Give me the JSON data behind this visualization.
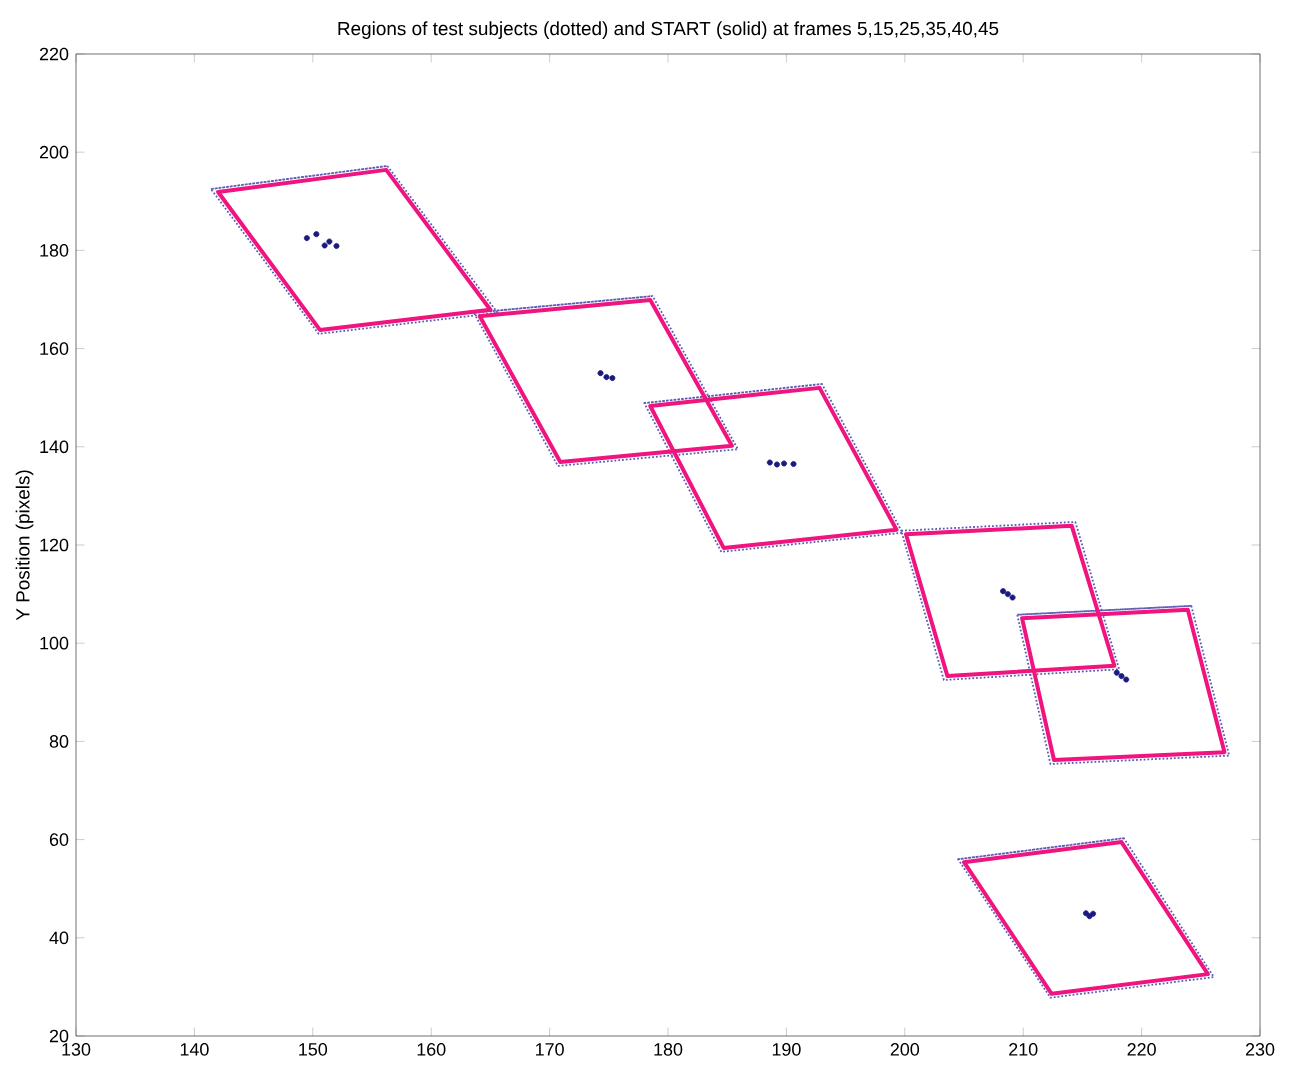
{
  "chart_data": {
    "type": "line",
    "title": "Regions of test subjects (dotted) and START (solid) at frames 5,15,25,35,40,45",
    "ylabel": "Y Position (pixels)",
    "xlim": [
      130,
      230
    ],
    "xticks": [
      130,
      140,
      150,
      160,
      170,
      180,
      190,
      200,
      210,
      220,
      230
    ],
    "ylim": [
      20,
      220
    ],
    "yticks": [
      20,
      40,
      60,
      80,
      100,
      120,
      140,
      160,
      180,
      200,
      220
    ],
    "series": [
      {
        "line_style": "dotted",
        "color": "#5a5ab4",
        "x": [
          141.4,
          156.3,
          165.6,
          150.5,
          141.4,
          156.3
        ],
        "values": [
          192.5,
          197.2,
          167.3,
          163.0,
          192.5,
          197.2
        ]
      },
      {
        "line_style": "dotted",
        "color": "#5a5ab4",
        "x": [
          163.6,
          178.7,
          185.9,
          170.7,
          163.6,
          178.7
        ],
        "values": [
          167.3,
          170.7,
          139.5,
          136.1,
          167.3,
          170.7
        ]
      },
      {
        "line_style": "dotted",
        "color": "#5a5ab4",
        "x": [
          178.0,
          193.0,
          199.8,
          184.5,
          178.0,
          193.0
        ],
        "values": [
          148.9,
          152.8,
          122.5,
          118.6,
          148.9,
          152.8
        ]
      },
      {
        "line_style": "dotted",
        "color": "#5a5ab4",
        "x": [
          199.7,
          214.4,
          218.1,
          203.3,
          199.7,
          214.4
        ],
        "values": [
          122.9,
          124.7,
          94.7,
          92.5,
          122.9,
          124.7
        ]
      },
      {
        "line_style": "dotted",
        "color": "#5a5ab4",
        "x": [
          209.5,
          224.2,
          227.4,
          212.3,
          209.5,
          224.2
        ],
        "values": [
          105.8,
          107.6,
          77.1,
          75.4,
          105.8,
          107.6
        ]
      },
      {
        "line_style": "dotted",
        "color": "#5a5ab4",
        "x": [
          204.5,
          218.5,
          226.1,
          212.3,
          204.5,
          218.5
        ],
        "values": [
          56.0,
          60.3,
          32.0,
          27.8,
          56.0,
          60.3
        ]
      },
      {
        "line_style": "solid",
        "color": "#f0147f",
        "x": [
          142.0,
          156.2,
          165.0,
          150.6,
          142.0,
          156.2
        ],
        "values": [
          191.9,
          196.4,
          167.9,
          163.8,
          191.9,
          196.4
        ]
      },
      {
        "line_style": "solid",
        "color": "#f0147f",
        "x": [
          164.1,
          178.5,
          185.4,
          170.9,
          164.1,
          178.5
        ],
        "values": [
          166.6,
          169.9,
          140.2,
          136.9,
          166.6,
          169.9
        ]
      },
      {
        "line_style": "solid",
        "color": "#f0147f",
        "x": [
          178.5,
          192.8,
          199.3,
          184.7,
          178.5,
          192.8
        ],
        "values": [
          148.3,
          152.0,
          123.1,
          119.4,
          148.3,
          152.0
        ]
      },
      {
        "line_style": "solid",
        "color": "#f0147f",
        "x": [
          200.1,
          214.1,
          217.7,
          203.6,
          200.1,
          214.1
        ],
        "values": [
          122.2,
          123.9,
          95.4,
          93.3,
          122.2,
          123.9
        ]
      },
      {
        "line_style": "solid",
        "color": "#f0147f",
        "x": [
          209.9,
          223.9,
          227.0,
          212.6,
          209.9,
          223.9
        ],
        "values": [
          105.1,
          106.8,
          77.8,
          76.2,
          105.1,
          106.8
        ]
      },
      {
        "line_style": "solid",
        "color": "#f0147f",
        "x": [
          205.0,
          218.3,
          225.6,
          212.4,
          205.0,
          218.3
        ],
        "values": [
          55.4,
          59.5,
          32.6,
          28.6,
          55.4,
          59.5
        ]
      },
      {
        "type": "scatter",
        "color": "#1a1a80",
        "x": [
          149.5,
          150.3,
          151.0,
          151.4,
          152.0,
          174.3,
          174.8,
          175.3,
          188.6,
          189.2,
          189.8,
          190.6,
          208.3,
          208.7,
          209.1,
          217.9,
          218.3,
          218.7,
          215.3,
          215.6,
          215.9
        ],
        "values": [
          182.5,
          183.3,
          181.0,
          181.8,
          180.9,
          155.0,
          154.2,
          154.0,
          136.8,
          136.4,
          136.6,
          136.5,
          110.6,
          110.0,
          109.3,
          94.0,
          93.3,
          92.6,
          45.0,
          44.4,
          44.9
        ]
      }
    ]
  }
}
